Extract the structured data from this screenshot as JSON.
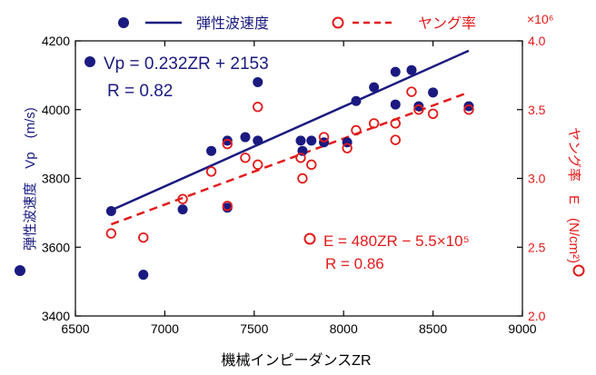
{
  "chart_data": {
    "type": "scatter",
    "xlabel": "機械インピーダンスZR",
    "ylabel_left": "弾性波速度　Vp　(m/s)",
    "ylabel_right": "ヤング率　E　(N/cm²)",
    "right_multiplier": "×10⁶",
    "x_ticks": [
      "6500",
      "7000",
      "7500",
      "8000",
      "8500",
      "9000"
    ],
    "y_left_ticks": [
      "3400",
      "3600",
      "3800",
      "4000",
      "4200"
    ],
    "y_right_ticks": [
      "2.0",
      "2.5",
      "3.0",
      "3.5",
      "4.0"
    ],
    "xlim": [
      6500,
      9000
    ],
    "ylim_left": [
      3400,
      4200
    ],
    "ylim_right": [
      2.0,
      4.0
    ],
    "grid": false,
    "legend": {
      "position": "top",
      "entries": [
        {
          "label": "弾性波速度",
          "marker": "filled-circle",
          "line": "solid",
          "color": "#1a1a80"
        },
        {
          "label": "ヤング率",
          "marker": "open-circle",
          "line": "dashed",
          "color": "#e31a1a"
        }
      ]
    },
    "series": [
      {
        "name": "弾性波速度",
        "axis": "left",
        "color": "#1a1a80",
        "marker": "filled",
        "points": [
          [
            6700,
            3705
          ],
          [
            6880,
            3520
          ],
          [
            7100,
            3710
          ],
          [
            7260,
            3880
          ],
          [
            7350,
            3910
          ],
          [
            7350,
            3715
          ],
          [
            7450,
            3920
          ],
          [
            7520,
            4080
          ],
          [
            7520,
            3910
          ],
          [
            7760,
            3910
          ],
          [
            7770,
            3880
          ],
          [
            7820,
            3910
          ],
          [
            7890,
            3905
          ],
          [
            8020,
            3905
          ],
          [
            8070,
            4025
          ],
          [
            8170,
            4065
          ],
          [
            8290,
            4015
          ],
          [
            8290,
            4110
          ],
          [
            8380,
            4115
          ],
          [
            8420,
            4010
          ],
          [
            8500,
            4050
          ],
          [
            8700,
            4010
          ]
        ],
        "fit": {
          "slope": 0.232,
          "intercept": 2153,
          "x_range": [
            6700,
            8700
          ]
        }
      },
      {
        "name": "ヤング率",
        "axis": "right",
        "color": "#e31a1a",
        "marker": "open",
        "points": [
          [
            6700,
            2.6
          ],
          [
            6880,
            2.57
          ],
          [
            7100,
            2.85
          ],
          [
            7260,
            3.05
          ],
          [
            7350,
            2.8
          ],
          [
            7350,
            3.25
          ],
          [
            7450,
            3.15
          ],
          [
            7520,
            3.1
          ],
          [
            7520,
            3.52
          ],
          [
            7760,
            3.15
          ],
          [
            7770,
            3.0
          ],
          [
            7820,
            3.1
          ],
          [
            7890,
            3.3
          ],
          [
            8020,
            3.22
          ],
          [
            8070,
            3.35
          ],
          [
            8170,
            3.4
          ],
          [
            8290,
            3.28
          ],
          [
            8290,
            3.4
          ],
          [
            8380,
            3.63
          ],
          [
            8420,
            3.5
          ],
          [
            8500,
            3.47
          ],
          [
            8700,
            3.5
          ]
        ],
        "fit": {
          "slope": 480,
          "intercept": -550000,
          "scale": 1000000,
          "x_range": [
            6700,
            8700
          ]
        }
      }
    ],
    "annotations": {
      "blue_eq": "Vp = 0.232ZR + 2153",
      "blue_r": "R  = 0.82",
      "red_eq": "E = 480ZR − 5.5×10⁵",
      "red_r": "R = 0.86"
    }
  }
}
